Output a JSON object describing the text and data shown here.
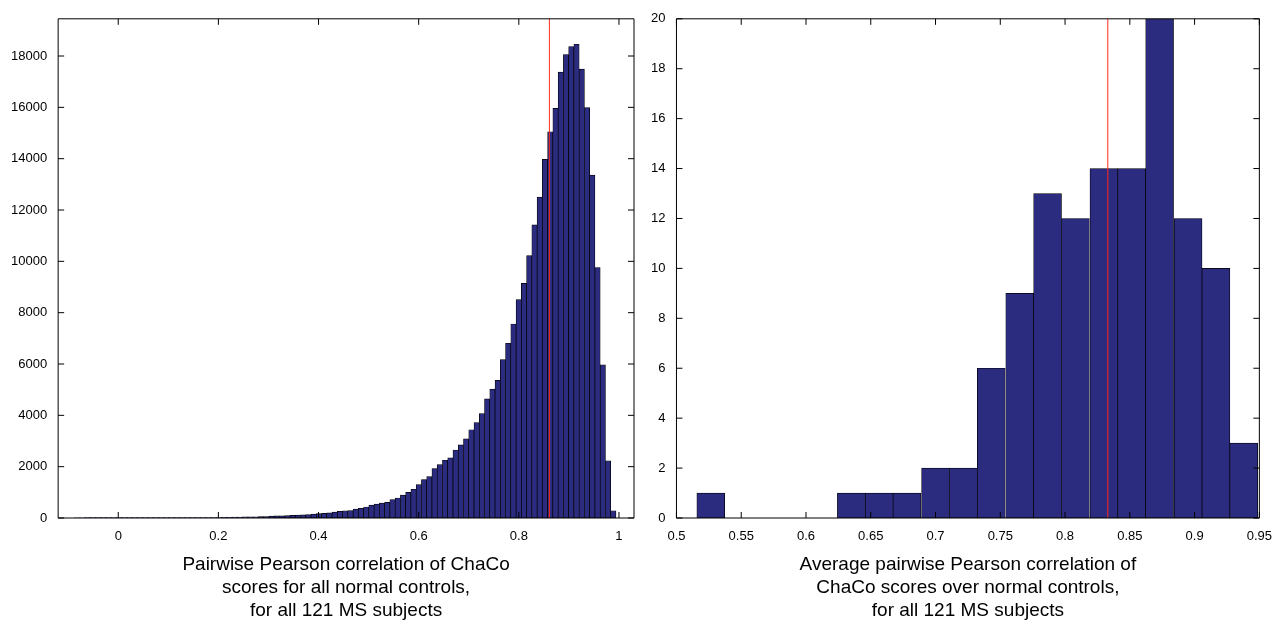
{
  "chart_data": [
    {
      "type": "histogram",
      "xlabel": "Pairwise Pearson correlation of ChaCo\nscores for all normal controls,\nfor all 121 MS subjects",
      "color": "#2b2b80",
      "bins": [
        -0.0875,
        -0.077,
        -0.0665,
        -0.056,
        -0.0455,
        -0.035,
        -0.0245,
        -0.014,
        -0.0035,
        0.007,
        0.0175,
        0.028,
        0.0385,
        0.049,
        0.0595,
        0.07,
        0.0805,
        0.091,
        0.1015,
        0.112,
        0.1225,
        0.133,
        0.1435,
        0.154,
        0.1645,
        0.175,
        0.1855,
        0.196,
        0.2065,
        0.217,
        0.2275,
        0.238,
        0.2485,
        0.259,
        0.2695,
        0.28,
        0.2905,
        0.301,
        0.3115,
        0.322,
        0.3325,
        0.343,
        0.3535,
        0.364,
        0.3745,
        0.385,
        0.3955,
        0.406,
        0.4165,
        0.427,
        0.4375,
        0.448,
        0.4585,
        0.469,
        0.4795,
        0.49,
        0.5005,
        0.511,
        0.5215,
        0.532,
        0.5425,
        0.553,
        0.5635,
        0.574,
        0.5845,
        0.595,
        0.6055,
        0.616,
        0.6265,
        0.637,
        0.6475,
        0.658,
        0.6685,
        0.679,
        0.6895,
        0.7,
        0.7105,
        0.721,
        0.7315,
        0.742,
        0.7525,
        0.763,
        0.7735,
        0.784,
        0.7945,
        0.805,
        0.8155,
        0.826,
        0.8365,
        0.847,
        0.8575,
        0.868,
        0.8785,
        0.889,
        0.8995,
        0.91,
        0.9205,
        0.931,
        0.9415,
        0.952,
        0.9625,
        0.973,
        0.9835,
        0.994
      ],
      "values": [
        10,
        10,
        20,
        20,
        20,
        20,
        20,
        20,
        20,
        20,
        20,
        20,
        20,
        20,
        20,
        20,
        20,
        20,
        20,
        20,
        20,
        20,
        20,
        20,
        20,
        20,
        20,
        20,
        30,
        30,
        40,
        40,
        50,
        50,
        50,
        60,
        60,
        70,
        80,
        80,
        90,
        100,
        110,
        120,
        130,
        150,
        170,
        180,
        200,
        230,
        260,
        280,
        290,
        350,
        380,
        430,
        500,
        540,
        580,
        610,
        720,
        780,
        890,
        1000,
        1120,
        1300,
        1500,
        1610,
        1930,
        2080,
        2250,
        2340,
        2650,
        2850,
        3080,
        3440,
        3720,
        4070,
        4640,
        5020,
        5360,
        6170,
        6810,
        7560,
        8510,
        9140,
        10220,
        11420,
        12500,
        13970,
        15050,
        15960,
        17370,
        18060,
        18370,
        18460,
        17490,
        15990,
        13360,
        9760,
        5970,
        2230,
        280
      ],
      "xlim": [
        -0.12,
        1.03
      ],
      "xticks": [
        0,
        0.2,
        0.4,
        0.6,
        0.8,
        1
      ],
      "ylim": [
        0,
        19450
      ],
      "yticks": [
        0,
        2000,
        4000,
        6000,
        8000,
        10000,
        12000,
        14000,
        16000,
        18000
      ],
      "ref_lines": [
        {
          "axis": "x",
          "value": 0.861,
          "color": "#ff2a1a"
        }
      ]
    },
    {
      "type": "histogram",
      "xlabel": "Average pairwise Pearson correlation of\nChaCo scores over normal controls,\nfor all 121 MS subjects",
      "color": "#2b2b80",
      "bins": [
        0.516,
        0.537,
        0.559,
        0.581,
        0.602,
        0.624,
        0.646,
        0.667,
        0.689,
        0.711,
        0.732,
        0.754,
        0.776,
        0.797,
        0.819,
        0.841,
        0.862,
        0.884,
        0.906,
        0.927,
        0.949
      ],
      "values": [
        1,
        0,
        0,
        0,
        0,
        1,
        1,
        1,
        2,
        2,
        6,
        9,
        13,
        12,
        14,
        14,
        20,
        12,
        10,
        3
      ],
      "xlim": [
        0.5,
        0.95
      ],
      "xticks": [
        0.5,
        0.55,
        0.6,
        0.65,
        0.7,
        0.75,
        0.8,
        0.85,
        0.9,
        0.95
      ],
      "ylim": [
        0,
        20
      ],
      "yticks": [
        0,
        2,
        4,
        6,
        8,
        10,
        12,
        14,
        16,
        18,
        20
      ],
      "ref_lines": [
        {
          "axis": "x",
          "value": 0.833,
          "color": "#ff2a1a"
        }
      ]
    }
  ]
}
